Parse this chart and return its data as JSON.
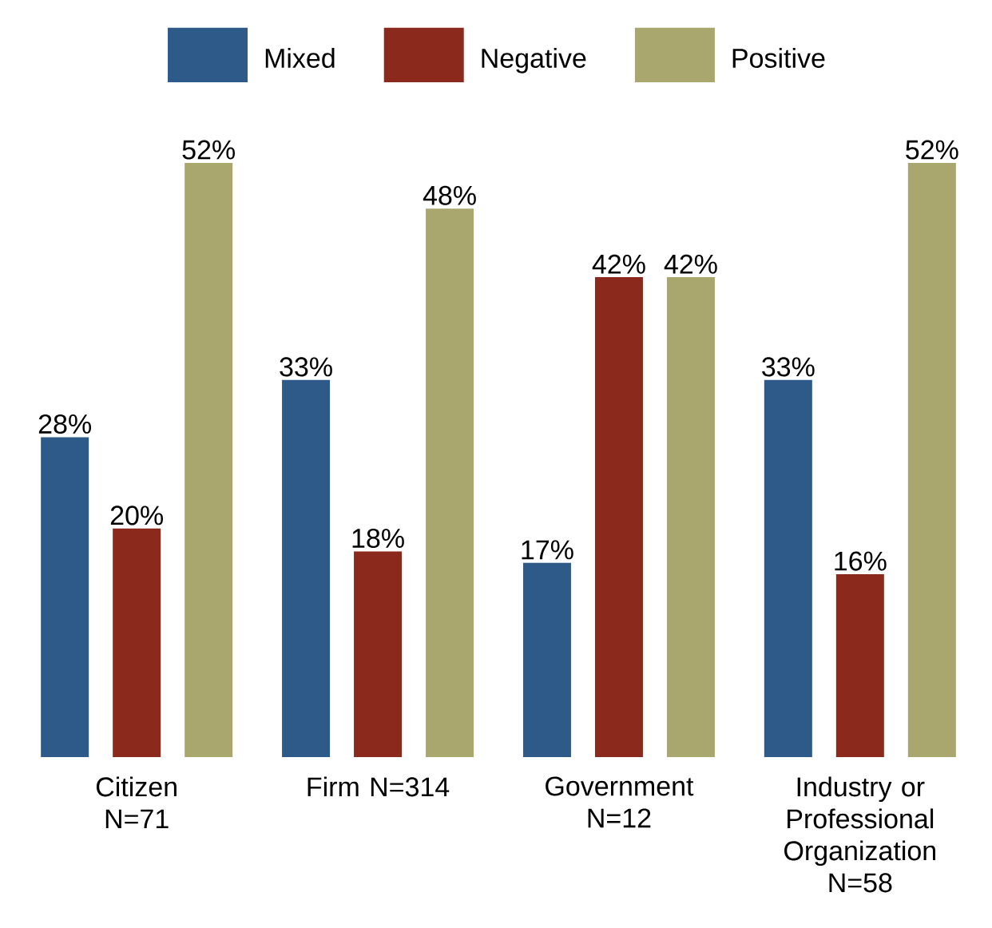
{
  "chart_data": {
    "type": "bar",
    "categories": [
      "Citizen N=71",
      "Firm N=314",
      "Government N=12",
      "Industry or Professional Organization N=58"
    ],
    "series": [
      {
        "name": "Mixed",
        "color": "#2e5a8a",
        "values": [
          28,
          33,
          17,
          33
        ],
        "value_labels": [
          "28%",
          "33%",
          "17%",
          "33%"
        ]
      },
      {
        "name": "Negative",
        "color": "#8b2a1c",
        "values": [
          20,
          18,
          42,
          16
        ],
        "value_labels": [
          "20%",
          "18%",
          "42%",
          "16%"
        ]
      },
      {
        "name": "Positive",
        "color": "#a9a66e",
        "values": [
          52,
          48,
          42,
          52
        ],
        "value_labels": [
          "52%",
          "48%",
          "42%",
          "52%"
        ]
      }
    ],
    "legend": "top"
  }
}
